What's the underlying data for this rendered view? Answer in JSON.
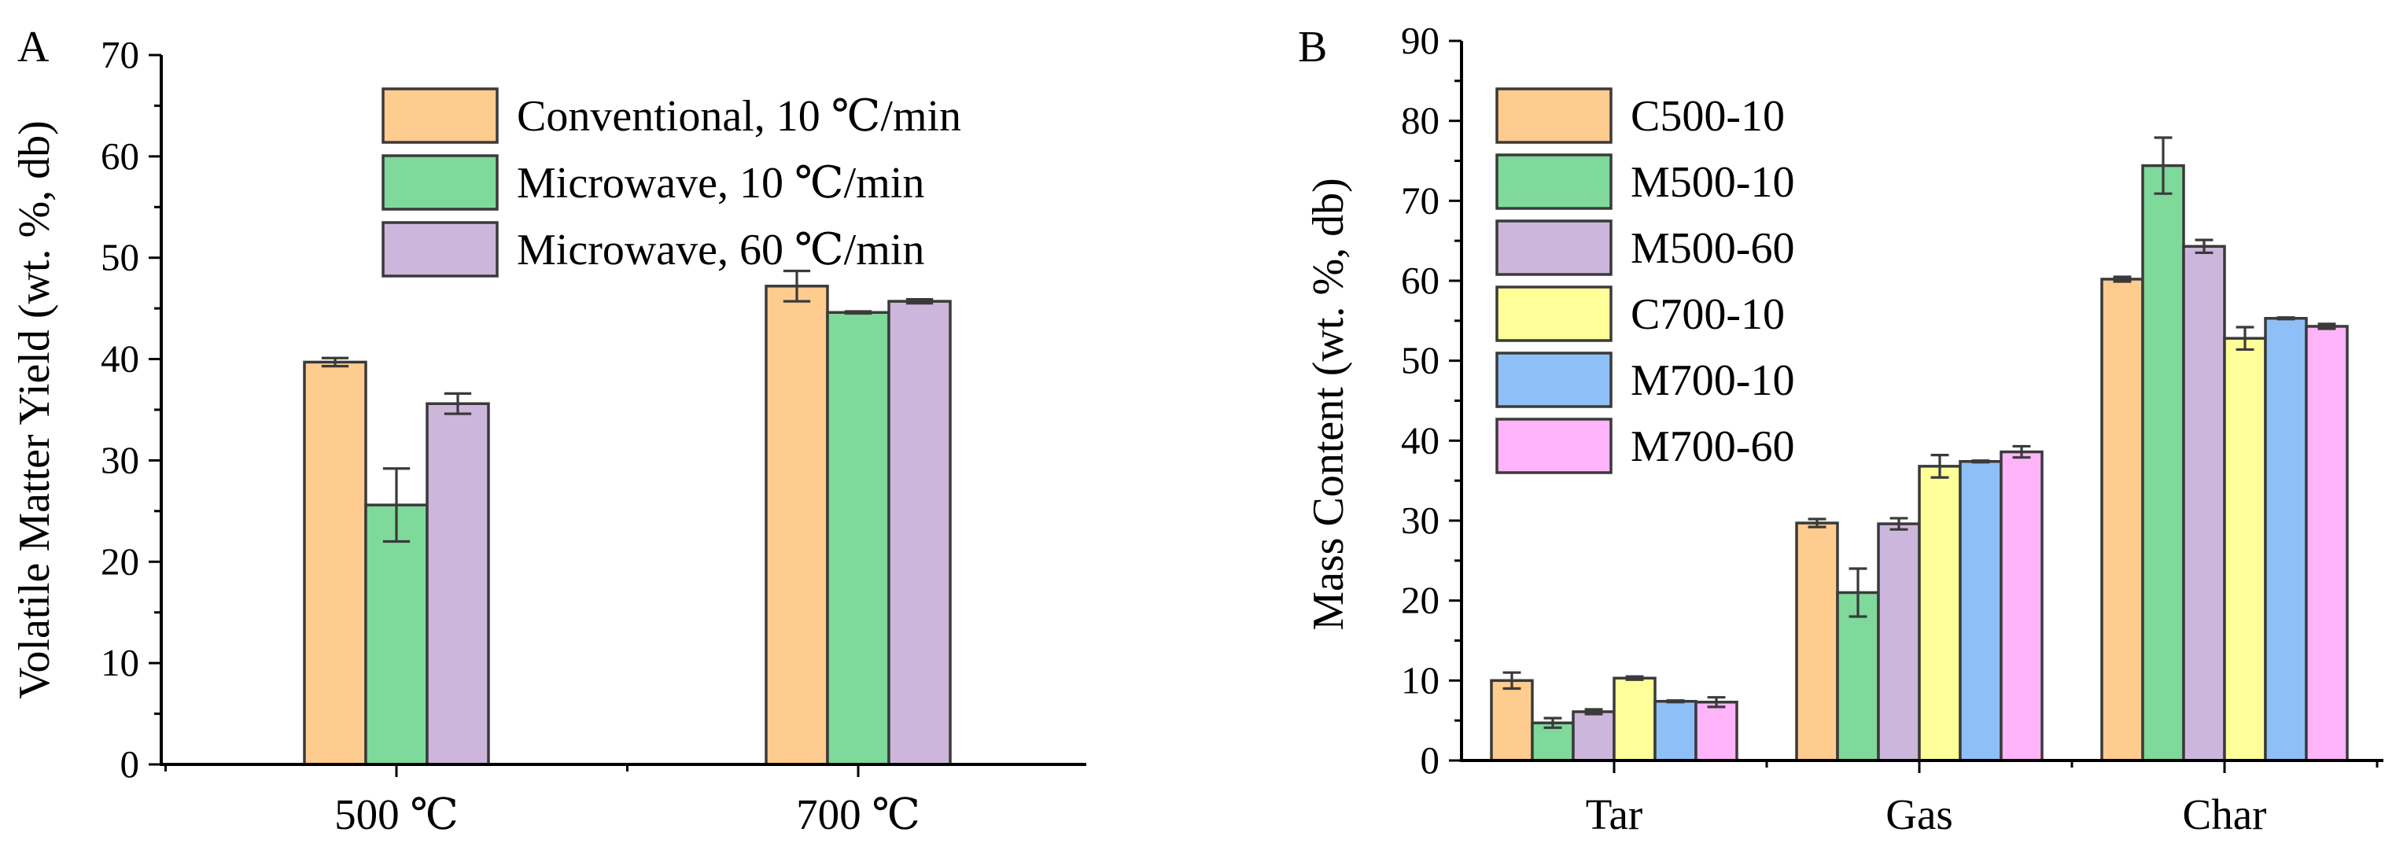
{
  "chart_data": [
    {
      "panel": "A",
      "type": "bar",
      "ylabel": "Volatile Matter Yield (wt. %, db)",
      "xlabel": "",
      "ylim": [
        0,
        70
      ],
      "yticks": [
        0,
        10,
        20,
        30,
        40,
        50,
        60,
        70
      ],
      "categories": [
        "500 ℃",
        "700 ℃"
      ],
      "series": [
        {
          "name": "Conventional, 10 ℃/min",
          "color": "#FFCC8F",
          "values": [
            39.7,
            47.2
          ],
          "errors": [
            0.4,
            1.5
          ]
        },
        {
          "name": "Microwave, 10 ℃/min",
          "color": "#7FD99A",
          "values": [
            25.6,
            44.6
          ],
          "errors": [
            3.6,
            0.1
          ]
        },
        {
          "name": "Microwave, 60 ℃/min",
          "color": "#CDB6DC",
          "values": [
            35.6,
            45.7
          ],
          "errors": [
            1.0,
            0.2
          ]
        }
      ],
      "legend_position": "top-right"
    },
    {
      "panel": "B",
      "type": "bar",
      "ylabel": "Mass Content (wt. %, db)",
      "xlabel": "",
      "ylim": [
        0,
        90
      ],
      "yticks": [
        0,
        10,
        20,
        30,
        40,
        50,
        60,
        70,
        80,
        90
      ],
      "categories": [
        "Tar",
        "Gas",
        "Char"
      ],
      "series": [
        {
          "name": "C500-10",
          "color": "#FFCC8F",
          "values": [
            10.0,
            29.7,
            60.2
          ],
          "errors": [
            1.0,
            0.5,
            0.3
          ]
        },
        {
          "name": "M500-10",
          "color": "#7FD99A",
          "values": [
            4.7,
            21.0,
            74.4
          ],
          "errors": [
            0.6,
            3.0,
            3.5
          ]
        },
        {
          "name": "M500-60",
          "color": "#CDB6DC",
          "values": [
            6.1,
            29.6,
            64.3
          ],
          "errors": [
            0.3,
            0.7,
            0.8
          ]
        },
        {
          "name": "C700-10",
          "color": "#FFFF99",
          "values": [
            10.3,
            36.8,
            52.8
          ],
          "errors": [
            0.2,
            1.4,
            1.4
          ]
        },
        {
          "name": "M700-10",
          "color": "#8EC0F7",
          "values": [
            7.4,
            37.4,
            55.3
          ],
          "errors": [
            0.1,
            0.1,
            0.1
          ]
        },
        {
          "name": "M700-60",
          "color": "#FFB4FA",
          "values": [
            7.3,
            38.6,
            54.3
          ],
          "errors": [
            0.6,
            0.7,
            0.3
          ]
        }
      ],
      "legend_position": "top-left"
    }
  ]
}
